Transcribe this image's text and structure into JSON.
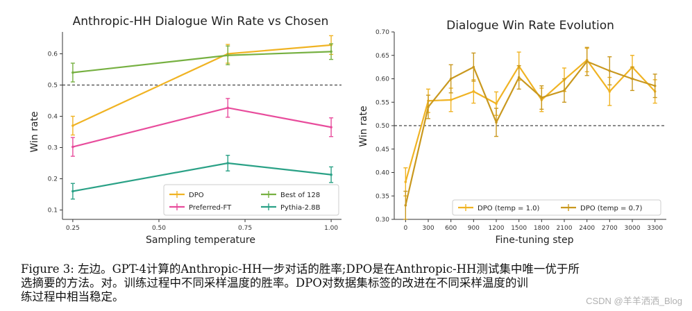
{
  "chart_data": [
    {
      "type": "line",
      "title": "Anthropic-HH Dialogue Win Rate vs Chosen",
      "xlabel": "Sampling temperature",
      "ylabel": "Win rate",
      "xlim": [
        0.22,
        1.03
      ],
      "ylim": [
        0.07,
        0.67
      ],
      "x_ticks": [
        0.25,
        0.5,
        0.75,
        1.0
      ],
      "x_tick_labels": [
        "0.25",
        "0.50",
        "0.75",
        "1.00"
      ],
      "y_ticks": [
        0.1,
        0.2,
        0.3,
        0.4,
        0.5,
        0.6
      ],
      "y_tick_labels": [
        "0.1",
        "0.2",
        "0.3",
        "0.4",
        "0.5",
        "0.6"
      ],
      "reference_line": 0.5,
      "legend_position": "lower-right",
      "series": [
        {
          "name": "DPO",
          "color": "#f0b323",
          "x": [
            0.25,
            0.7,
            1.0
          ],
          "y": [
            0.37,
            0.6,
            0.628
          ],
          "err": [
            0.03,
            0.03,
            0.03
          ]
        },
        {
          "name": "Best of 128",
          "color": "#76b041",
          "x": [
            0.25,
            0.7,
            1.0
          ],
          "y": [
            0.54,
            0.595,
            0.607
          ],
          "err": [
            0.03,
            0.03,
            0.025
          ]
        },
        {
          "name": "Preferred-FT",
          "color": "#e84c9c",
          "x": [
            0.25,
            0.7,
            1.0
          ],
          "y": [
            0.302,
            0.427,
            0.365
          ],
          "err": [
            0.03,
            0.03,
            0.03
          ]
        },
        {
          "name": "Pythia-2.8B",
          "color": "#2aa186",
          "x": [
            0.25,
            0.7,
            1.0
          ],
          "y": [
            0.16,
            0.25,
            0.213
          ],
          "err": [
            0.025,
            0.025,
            0.025
          ]
        }
      ]
    },
    {
      "type": "line",
      "title": "Dialogue Win Rate Evolution",
      "xlabel": "Fine-tuning step",
      "ylabel": "Win rate",
      "xlim": [
        -150,
        3450
      ],
      "ylim": [
        0.3,
        0.7
      ],
      "x_ticks": [
        0,
        300,
        600,
        900,
        1200,
        1500,
        1800,
        2100,
        2400,
        2700,
        3000,
        3300
      ],
      "x_tick_labels": [
        "0",
        "300",
        "600",
        "900",
        "1200",
        "1500",
        "1800",
        "2100",
        "2400",
        "2700",
        "3000",
        "3300"
      ],
      "y_ticks": [
        0.3,
        0.35,
        0.4,
        0.45,
        0.5,
        0.55,
        0.6,
        0.65,
        0.7
      ],
      "y_tick_labels": [
        "0.30",
        "0.35",
        "0.40",
        "0.45",
        "0.50",
        "0.55",
        "0.60",
        "0.65",
        "0.70"
      ],
      "reference_line": 0.5,
      "legend_position": "bottom",
      "series": [
        {
          "name": "DPO (temp = 1.0)",
          "color": "#f0b323",
          "x": [
            0,
            300,
            600,
            900,
            1200,
            1500,
            1800,
            2100,
            2400,
            2700,
            3000,
            3300
          ],
          "y": [
            0.38,
            0.553,
            0.555,
            0.573,
            0.547,
            0.627,
            0.555,
            0.598,
            0.64,
            0.573,
            0.625,
            0.573
          ],
          "err": [
            0.03,
            0.025,
            0.025,
            0.025,
            0.025,
            0.03,
            0.025,
            0.025,
            0.025,
            0.03,
            0.025,
            0.025
          ]
        },
        {
          "name": "DPO (temp = 0.7)",
          "color": "#c9981e",
          "x": [
            0,
            300,
            600,
            900,
            1200,
            1500,
            1800,
            2100,
            2400,
            2700,
            3000,
            3300
          ],
          "y": [
            0.33,
            0.54,
            0.6,
            0.625,
            0.507,
            0.603,
            0.56,
            0.575,
            0.637,
            0.617,
            0.6,
            0.585
          ],
          "err": [
            0.03,
            0.025,
            0.03,
            0.03,
            0.03,
            0.025,
            0.025,
            0.025,
            0.03,
            0.03,
            0.025,
            0.025
          ]
        }
      ]
    }
  ],
  "caption": {
    "line1": "Figure 3: 左边。GPT-4计算的Anthropic-HH一步对话的胜率;DPO是在Anthropic-HH测试集中唯一优于所",
    "line2": "选摘要的方法。对。训练过程中不同采样温度的胜率。DPO对数据集标签的改进在不同采样温度的训",
    "line3": "练过程中相当稳定。"
  },
  "watermark": "CSDN @羊羊洒洒_Blog"
}
